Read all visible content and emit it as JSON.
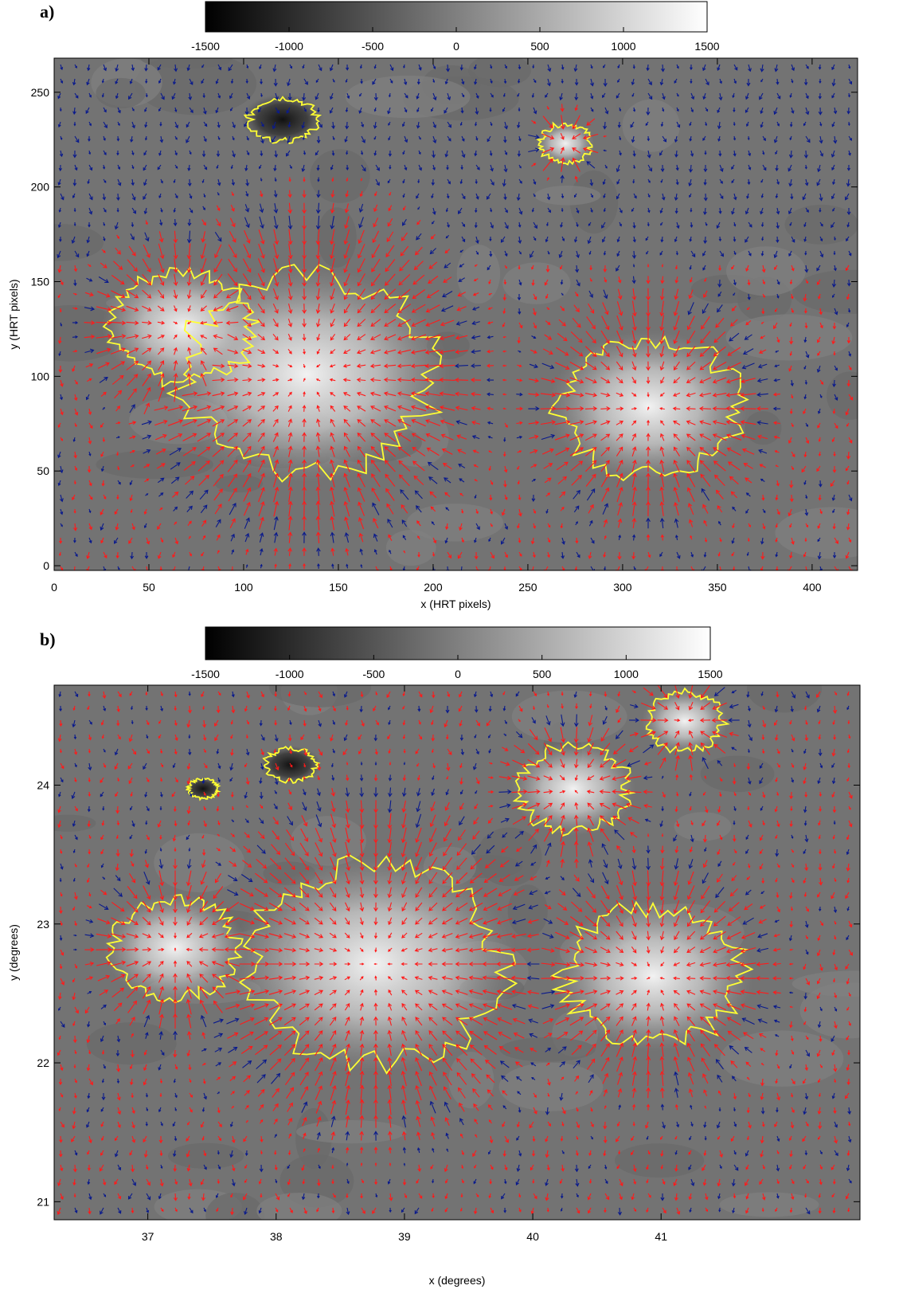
{
  "chart_data": [
    {
      "type": "image",
      "label": "a)",
      "colorbar_lim": [
        -1500,
        1500
      ],
      "colorbar_ticks": [
        -1500,
        -1000,
        -500,
        0,
        500,
        1000,
        1500
      ],
      "xlabel": "x (HRT pixels)",
      "ylabel": "y (HRT pixels)",
      "xlim": [
        0,
        424
      ],
      "ylim": [
        -2.5,
        268
      ],
      "xticks": [
        0,
        50,
        100,
        150,
        200,
        250,
        300,
        350,
        400
      ],
      "yticks": [
        0,
        50,
        100,
        150,
        200,
        250
      ]
    },
    {
      "type": "image",
      "label": "b)",
      "colorbar_lim": [
        -1500,
        1500
      ],
      "colorbar_ticks": [
        -1500,
        -1000,
        -500,
        0,
        500,
        1000,
        1500
      ],
      "xlabel": "x (degrees)",
      "ylabel": "y (degrees)",
      "xlim": [
        36.27,
        42.55
      ],
      "ylim": [
        20.87,
        24.72
      ],
      "xticks": [
        37,
        38,
        39,
        40,
        41
      ],
      "yticks": [
        21,
        22,
        23,
        24
      ]
    }
  ]
}
